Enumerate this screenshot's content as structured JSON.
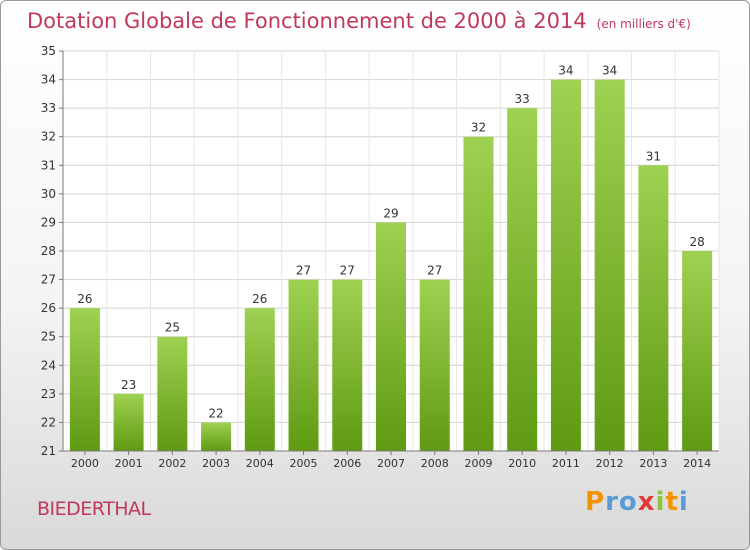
{
  "title": "Dotation Globale de Fonctionnement de 2000 à 2014",
  "subtitle": "(en milliers d'€)",
  "commune": "BIEDERTHAL",
  "brand": {
    "letters": [
      "P",
      "r",
      "o",
      "x",
      "i",
      "t",
      "i"
    ],
    "colors": [
      "#f29400",
      "#5b9bd5",
      "#5b9bd5",
      "#e03a3a",
      "#8cc63f",
      "#f29400",
      "#5b9bd5"
    ]
  },
  "colors": {
    "bar_top": "#9fd152",
    "bar_bottom": "#5f9a12",
    "accent": "#c0395a"
  },
  "chart_data": {
    "type": "bar",
    "categories": [
      "2000",
      "2001",
      "2002",
      "2003",
      "2004",
      "2005",
      "2006",
      "2007",
      "2008",
      "2009",
      "2010",
      "2011",
      "2012",
      "2013",
      "2014"
    ],
    "values": [
      26,
      23,
      25,
      22,
      26,
      27,
      27,
      29,
      27,
      32,
      33,
      34,
      34,
      31,
      28
    ],
    "ylim": [
      21,
      35
    ],
    "yticks": [
      21,
      22,
      23,
      24,
      25,
      26,
      27,
      28,
      29,
      30,
      31,
      32,
      33,
      34,
      35
    ],
    "grid": true,
    "legend": "none"
  }
}
